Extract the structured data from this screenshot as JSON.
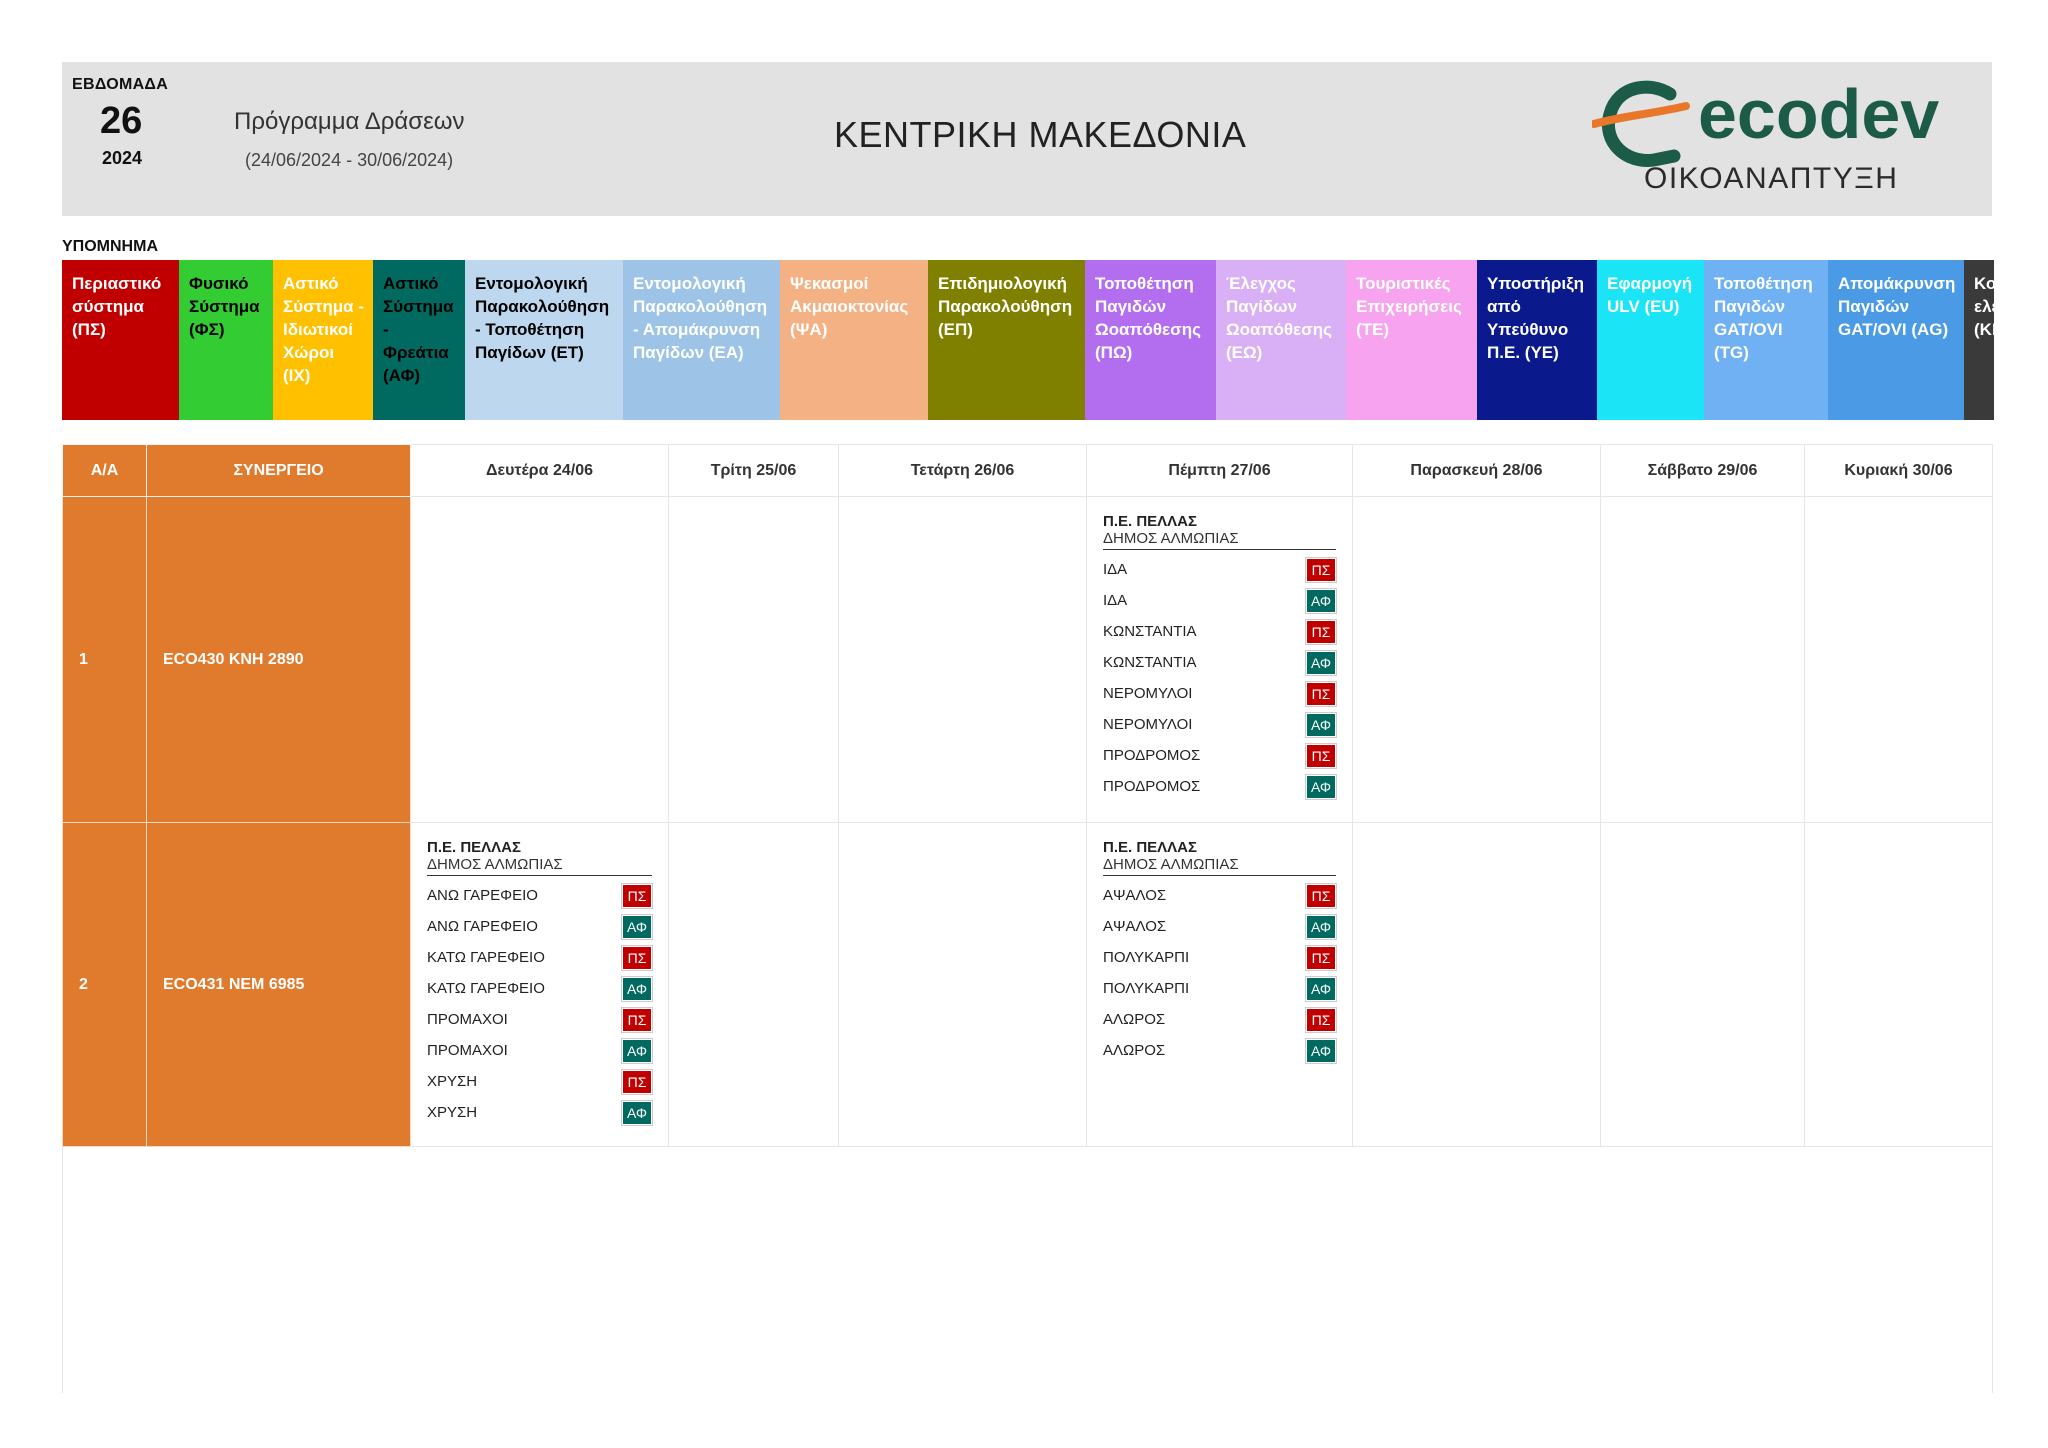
{
  "header": {
    "week_label": "ΕΒΔΟΜΑΔΑ",
    "week_number": "26",
    "year": "2024",
    "program_title": "Πρόγραμμα Δράσεων",
    "date_range": "(24/06/2024 - 30/06/2024)",
    "region": "ΚΕΝΤΡΙΚΗ ΜΑΚΕΔΟΝΙΑ",
    "logo_text": "ecodev",
    "logo_subtitle": "ΟΙΚΟΑΝΑΠΤΥΞΗ",
    "logo_colors": {
      "green": "#1c5b47",
      "orange": "#e8772a"
    }
  },
  "legend": {
    "title": "ΥΠΟΜΝΗΜΑ",
    "items": [
      {
        "label": "Περιαστικό σύστημα (ΠΣ)",
        "bg": "#c00000",
        "fg": "#ffffff"
      },
      {
        "label": "Φυσικό Σύστημα (ΦΣ)",
        "bg": "#33cc33",
        "fg": "#000000"
      },
      {
        "label": "Αστικό Σύστημα - Ιδιωτικοί Χώροι (ΙΧ)",
        "bg": "#ffc000",
        "fg": "#ffffff"
      },
      {
        "label": "Αστικό Σύστημα - Φρεάτια (ΑΦ)",
        "bg": "#006a60",
        "fg": "#000000"
      },
      {
        "label": "Εντομολογική Παρακολούθηση - Τοποθέτηση Παγίδων (ΕΤ)",
        "bg": "#bdd7ee",
        "fg": "#000000"
      },
      {
        "label": "Εντομολογική Παρακολούθηση - Απομάκρυνση Παγίδων (ΕΑ)",
        "bg": "#9dc3e6",
        "fg": "#ffffff"
      },
      {
        "label": "Ψεκασμοί Ακμαιοκτονίας (ΨΑ)",
        "bg": "#f4b183",
        "fg": "#ffffff"
      },
      {
        "label": "Επιδημιολογική Παρακολούθηση (ΕΠ)",
        "bg": "#808000",
        "fg": "#ffffff"
      },
      {
        "label": "Τοποθέτηση Παγιδών Ωοαπόθεσης (ΠΩ)",
        "bg": "#b36ef0",
        "fg": "#ffffff"
      },
      {
        "label": "Έλεγχος Παγίδων Ωοαπόθεσης (ΕΩ)",
        "bg": "#d9b0f5",
        "fg": "#ffffff"
      },
      {
        "label": "Τουριστικές Επιχειρήσεις (ΤΕ)",
        "bg": "#f7a3f0",
        "fg": "#ffffff"
      },
      {
        "label": "Υποστήριξη από Υπεύθυνο Π.Ε. (ΥΕ)",
        "bg": "#0a1a8c",
        "fg": "#ffffff"
      },
      {
        "label": "Εφαρμογή ULV (EU)",
        "bg": "#1ae4f5",
        "fg": "#ffffff"
      },
      {
        "label": "Τοποθέτηση Παγιδών GAT/OVI (TG)",
        "bg": "#6fb1f2",
        "fg": "#ffffff"
      },
      {
        "label": "Απομάκρυνση Παγιδών GAT/OVI (AG)",
        "bg": "#4a9ae6",
        "fg": "#ffffff"
      },
      {
        "label": "Κοι ελε (ΚΜ",
        "bg": "#3a3a3a",
        "fg": "#ffffff"
      }
    ]
  },
  "table": {
    "headers": {
      "aa": "Α/Α",
      "synergeio": "ΣΥΝΕΡΓΕΙΟ",
      "days": [
        "Δευτέρα 24/06",
        "Τρίτη 25/06",
        "Τετάρτη 26/06",
        "Πέμπτη 27/06",
        "Παρασκευή 28/06",
        "Σάββατο 29/06",
        "Κυριακή 30/06"
      ]
    },
    "tag_colors": {
      "ΠΣ": "#c00000",
      "ΑΦ": "#006a60"
    },
    "rows": [
      {
        "aa": "1",
        "synergeio": "ECO430  ΚΝΗ 2890",
        "monday": null,
        "thursday": {
          "pe": "Π.Ε. ΠΕΛΛΑΣ",
          "dhmos": "ΔΗΜΟΣ ΑΛΜΩΠΙΑΣ",
          "items": [
            {
              "name": "ΙΔΑ",
              "tag": "ΠΣ"
            },
            {
              "name": "ΙΔΑ",
              "tag": "ΑΦ"
            },
            {
              "name": "ΚΩΝΣΤΑΝΤΙΑ",
              "tag": "ΠΣ"
            },
            {
              "name": "ΚΩΝΣΤΑΝΤΙΑ",
              "tag": "ΑΦ"
            },
            {
              "name": "ΝΕΡΟΜΥΛΟΙ",
              "tag": "ΠΣ"
            },
            {
              "name": "ΝΕΡΟΜΥΛΟΙ",
              "tag": "ΑΦ"
            },
            {
              "name": "ΠΡΟΔΡΟΜΟΣ",
              "tag": "ΠΣ"
            },
            {
              "name": "ΠΡΟΔΡΟΜΟΣ",
              "tag": "ΑΦ"
            }
          ]
        }
      },
      {
        "aa": "2",
        "synergeio": "ECO431  ΝΕΜ 6985",
        "monday": {
          "pe": "Π.Ε. ΠΕΛΛΑΣ",
          "dhmos": "ΔΗΜΟΣ ΑΛΜΩΠΙΑΣ",
          "items": [
            {
              "name": "ΑΝΩ ΓΑΡΕΦΕΙΟ",
              "tag": "ΠΣ"
            },
            {
              "name": "ΑΝΩ ΓΑΡΕΦΕΙΟ",
              "tag": "ΑΦ"
            },
            {
              "name": "ΚΑΤΩ ΓΑΡΕΦΕΙΟ",
              "tag": "ΠΣ"
            },
            {
              "name": "ΚΑΤΩ ΓΑΡΕΦΕΙΟ",
              "tag": "ΑΦ"
            },
            {
              "name": "ΠΡΟΜΑΧΟΙ",
              "tag": "ΠΣ"
            },
            {
              "name": "ΠΡΟΜΑΧΟΙ",
              "tag": "ΑΦ"
            },
            {
              "name": "ΧΡΥΣΗ",
              "tag": "ΠΣ"
            },
            {
              "name": "ΧΡΥΣΗ",
              "tag": "ΑΦ"
            }
          ]
        },
        "thursday": {
          "pe": "Π.Ε. ΠΕΛΛΑΣ",
          "dhmos": "ΔΗΜΟΣ ΑΛΜΩΠΙΑΣ",
          "items": [
            {
              "name": "ΑΨΑΛΟΣ",
              "tag": "ΠΣ"
            },
            {
              "name": "ΑΨΑΛΟΣ",
              "tag": "ΑΦ"
            },
            {
              "name": "ΠΟΛΥΚΑΡΠΙ",
              "tag": "ΠΣ"
            },
            {
              "name": "ΠΟΛΥΚΑΡΠΙ",
              "tag": "ΑΦ"
            },
            {
              "name": "ΑΛΩΡΟΣ",
              "tag": "ΠΣ"
            },
            {
              "name": "ΑΛΩΡΟΣ",
              "tag": "ΑΦ"
            }
          ]
        }
      }
    ]
  }
}
